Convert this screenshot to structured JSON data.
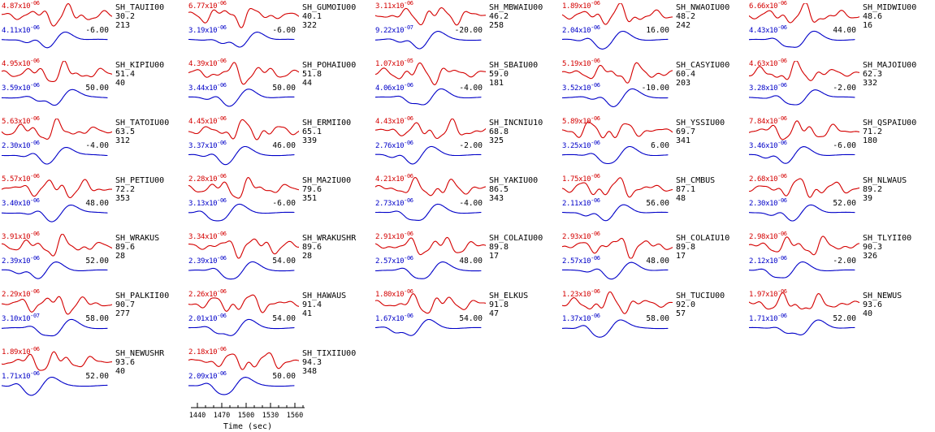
{
  "figure": {
    "colors": {
      "observed": "#d40000",
      "synthetic": "#0000c8",
      "text": "#000000",
      "background": "#ffffff"
    }
  },
  "chart_data": {
    "type": "line",
    "description": "Grid of SH-wave seismogram pairs: observed trace (red, top) vs synthetic trace (blue, bottom) per station; labels give trace peak amplitudes, station code, epicentral distance (deg), azimuth (deg), and time shift (sec)",
    "legend": {
      "red_trace": "observed",
      "blue_trace": "synthetic"
    },
    "grid": {
      "columns": 5,
      "rows": 7
    },
    "time_axis": {
      "label": "Time (sec)",
      "ticks": [
        1440,
        1470,
        1500,
        1530,
        1560
      ],
      "range": [
        1432,
        1572
      ]
    },
    "panels": [
      {
        "station": "SH_TAUII00",
        "dist": "30.2",
        "az": "213",
        "obs": "4.87x10^-06",
        "syn": "4.11x10^-06",
        "shift": "-6.00"
      },
      {
        "station": "SH_GUMOIU00",
        "dist": "40.1",
        "az": "322",
        "obs": "6.77x10^-06",
        "syn": "3.19x10^-06",
        "shift": "-6.00"
      },
      {
        "station": "SH_MBWAIU00",
        "dist": "46.2",
        "az": "258",
        "obs": "3.11x10^-06",
        "syn": "9.22x10^-07",
        "shift": "-20.00"
      },
      {
        "station": "SH_NWAOIU00",
        "dist": "48.2",
        "az": "242",
        "obs": "1.89x10^-06",
        "syn": "2.04x10^-06",
        "shift": "16.00"
      },
      {
        "station": "SH_MIDWIU00",
        "dist": "48.6",
        "az": "16",
        "obs": "6.66x10^-06",
        "syn": "4.43x10^-06",
        "shift": "44.00"
      },
      {
        "station": "SH_KIPIU00",
        "dist": "51.4",
        "az": "40",
        "obs": "4.95x10^-06",
        "syn": "3.59x10^-06",
        "shift": "50.00"
      },
      {
        "station": "SH_POHAIU00",
        "dist": "51.8",
        "az": "44",
        "obs": "4.39x10^-06",
        "syn": "3.44x10^-06",
        "shift": "50.00"
      },
      {
        "station": "SH_SBAIU00",
        "dist": "59.0",
        "az": "181",
        "obs": "1.07x10^-05",
        "syn": "4.06x10^-06",
        "shift": "-4.00"
      },
      {
        "station": "SH_CASYIU00",
        "dist": "60.4",
        "az": "203",
        "obs": "5.19x10^-06",
        "syn": "3.52x10^-06",
        "shift": "-10.00"
      },
      {
        "station": "SH_MAJOIU00",
        "dist": "62.3",
        "az": "332",
        "obs": "4.63x10^-06",
        "syn": "3.28x10^-06",
        "shift": "-2.00"
      },
      {
        "station": "SH_TATOIU00",
        "dist": "63.5",
        "az": "312",
        "obs": "5.63x10^-06",
        "syn": "2.30x10^-06",
        "shift": "-4.00"
      },
      {
        "station": "SH_ERMII00",
        "dist": "65.1",
        "az": "339",
        "obs": "4.45x10^-06",
        "syn": "3.37x10^-06",
        "shift": "46.00"
      },
      {
        "station": "SH_INCNIU10",
        "dist": "68.8",
        "az": "325",
        "obs": "4.43x10^-06",
        "syn": "2.76x10^-06",
        "shift": "-2.00"
      },
      {
        "station": "SH_YSSIU00",
        "dist": "69.7",
        "az": "341",
        "obs": "5.89x10^-06",
        "syn": "3.25x10^-06",
        "shift": "6.00"
      },
      {
        "station": "SH_QSPAIU00",
        "dist": "71.2",
        "az": "180",
        "obs": "7.84x10^-06",
        "syn": "3.46x10^-06",
        "shift": "-6.00"
      },
      {
        "station": "SH_PETIU00",
        "dist": "72.2",
        "az": "353",
        "obs": "5.57x10^-06",
        "syn": "3.40x10^-06",
        "shift": "48.00"
      },
      {
        "station": "SH_MA2IU00",
        "dist": "79.6",
        "az": "351",
        "obs": "2.28x10^-06",
        "syn": "3.13x10^-06",
        "shift": "-6.00"
      },
      {
        "station": "SH_YAKIU00",
        "dist": "86.5",
        "az": "343",
        "obs": "4.21x10^-06",
        "syn": "2.73x10^-06",
        "shift": "-4.00"
      },
      {
        "station": "SH_CMBUS",
        "dist": "87.1",
        "az": "48",
        "obs": "1.75x10^-06",
        "syn": "2.11x10^-06",
        "shift": "56.00"
      },
      {
        "station": "SH_NLWAUS",
        "dist": "89.2",
        "az": "39",
        "obs": "2.68x10^-06",
        "syn": "2.30x10^-06",
        "shift": "52.00"
      },
      {
        "station": "SH_WRAKUS",
        "dist": "89.6",
        "az": "28",
        "obs": "3.91x10^-06",
        "syn": "2.39x10^-06",
        "shift": "52.00"
      },
      {
        "station": "SH_WRAKUSHR",
        "dist": "89.6",
        "az": "28",
        "obs": "3.34x10^-06",
        "syn": "2.39x10^-06",
        "shift": "54.00"
      },
      {
        "station": "SH_COLAIU00",
        "dist": "89.8",
        "az": "17",
        "obs": "2.91x10^-06",
        "syn": "2.57x10^-06",
        "shift": "48.00"
      },
      {
        "station": "SH_COLAIU10",
        "dist": "89.8",
        "az": "17",
        "obs": "2.93x10^-06",
        "syn": "2.57x10^-06",
        "shift": "48.00"
      },
      {
        "station": "SH_TLYII00",
        "dist": "90.3",
        "az": "326",
        "obs": "2.98x10^-06",
        "syn": "2.12x10^-06",
        "shift": "-2.00"
      },
      {
        "station": "SH_PALKII00",
        "dist": "90.7",
        "az": "277",
        "obs": "2.29x10^-06",
        "syn": "3.10x10^-07",
        "shift": "58.00"
      },
      {
        "station": "SH_HAWAUS",
        "dist": "91.4",
        "az": "41",
        "obs": "2.26x10^-06",
        "syn": "2.01x10^-06",
        "shift": "54.00"
      },
      {
        "station": "SH_ELKUS",
        "dist": "91.8",
        "az": "47",
        "obs": "1.80x10^-06",
        "syn": "1.67x10^-06",
        "shift": "54.00"
      },
      {
        "station": "SH_TUCIU00",
        "dist": "92.0",
        "az": "57",
        "obs": "1.23x10^-06",
        "syn": "1.37x10^-06",
        "shift": "58.00"
      },
      {
        "station": "SH_NEWUS",
        "dist": "93.6",
        "az": "40",
        "obs": "1.97x10^-06",
        "syn": "1.71x10^-06",
        "shift": "52.00"
      },
      {
        "station": "SH_NEWUSHR",
        "dist": "93.6",
        "az": "40",
        "obs": "1.89x10^-06",
        "syn": "1.71x10^-06",
        "shift": "52.00"
      },
      {
        "station": "SH_TIXIIU00",
        "dist": "94.3",
        "az": "348",
        "obs": "2.18x10^-06",
        "syn": "2.09x10^-06",
        "shift": "50.00"
      }
    ]
  }
}
